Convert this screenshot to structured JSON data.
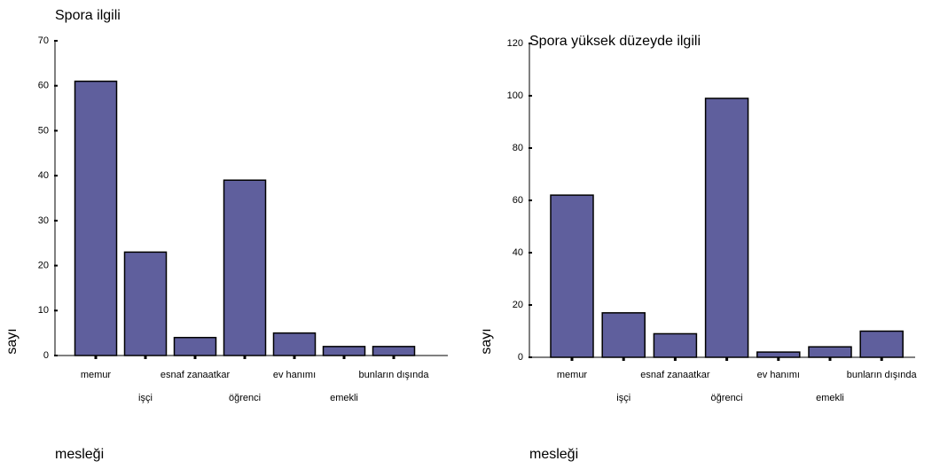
{
  "chart_data": [
    {
      "type": "bar",
      "title": "Spora ilgili",
      "x_label": "mesleği",
      "y_label": "sayı",
      "categories": [
        "memur",
        "işçi",
        "esnaf zanaatkar",
        "öğrenci",
        "ev hanımı",
        "emekli",
        "bunların dışında"
      ],
      "values": [
        61,
        23,
        4,
        39,
        5,
        2,
        2
      ],
      "color": "#5f5f9d",
      "ylim": [
        0,
        70
      ],
      "yticks": [
        0,
        10,
        20,
        30,
        40,
        50,
        60,
        70
      ]
    },
    {
      "type": "bar",
      "title": "Spora yüksek düzeyde ilgili",
      "x_label": "mesleği",
      "y_label": "sayı",
      "categories": [
        "memur",
        "işçi",
        "esnaf zanaatkar",
        "öğrenci",
        "ev hanımı",
        "emekli",
        "bunların dışında"
      ],
      "values": [
        62,
        17,
        9,
        99,
        2,
        4,
        10
      ],
      "color": "#5f5f9d",
      "ylim": [
        0,
        120
      ],
      "yticks": [
        0,
        20,
        40,
        60,
        80,
        100,
        120
      ]
    }
  ]
}
